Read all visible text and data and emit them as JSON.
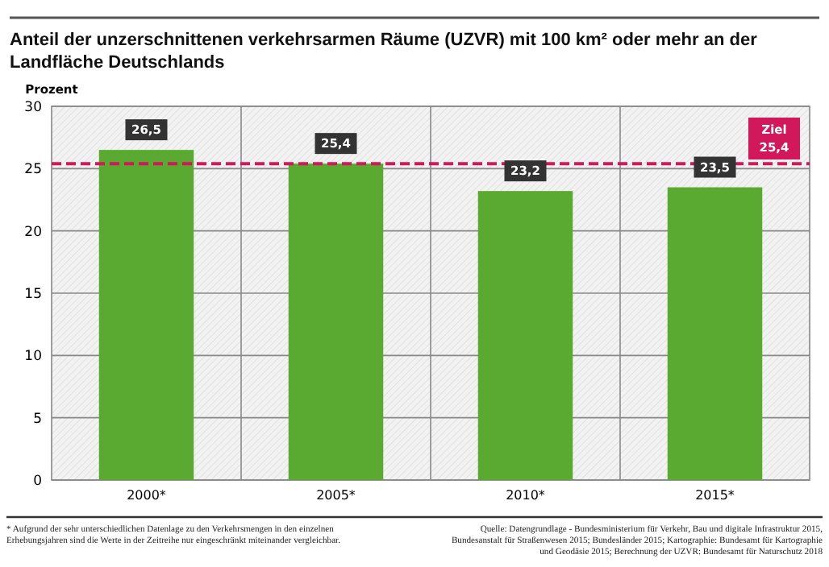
{
  "chart_data": {
    "type": "bar",
    "title": "Anteil der unzerschnittenen verkehrsarmen Räume (UZVR) mit 100 km² oder mehr an der Landfläche Deutschlands",
    "ylabel": "Prozent",
    "categories": [
      "2000*",
      "2005*",
      "2010*",
      "2015*"
    ],
    "values": [
      26.5,
      25.4,
      23.2,
      23.5
    ],
    "value_labels": [
      "26,5",
      "25,4",
      "23,2",
      "23,5"
    ],
    "color": "#5aaa32",
    "ylim": [
      0,
      30
    ],
    "yticks": [
      0,
      5,
      10,
      15,
      20,
      25,
      30
    ],
    "grid": true,
    "ref_lines": [
      {
        "axis": "y",
        "value": 25.4,
        "label": "Ziel 25,4",
        "color": "#d0185a",
        "line_style": "dashed"
      }
    ],
    "annotations": [
      "* Aufgrund der sehr unterschiedlichen Datenlage zu den Verkehrsmengen in den einzelnen Erhebungsjahren sind die Werte in der Zeitreihe nur eingeschränkt miteinander vergleichbar.",
      "Quelle: Datengrundlage - Bundesministerium für Verkehr, Bau und digitale Infrastruktur 2015, Bundesanstalt für Straßenwesen 2015; Bundesländer 2015; Kartographie: Bundesamt für Kartographie und Geodäsie 2015; Berechnung der UZVR: Bundesamt für Naturschutz 2018"
    ]
  }
}
